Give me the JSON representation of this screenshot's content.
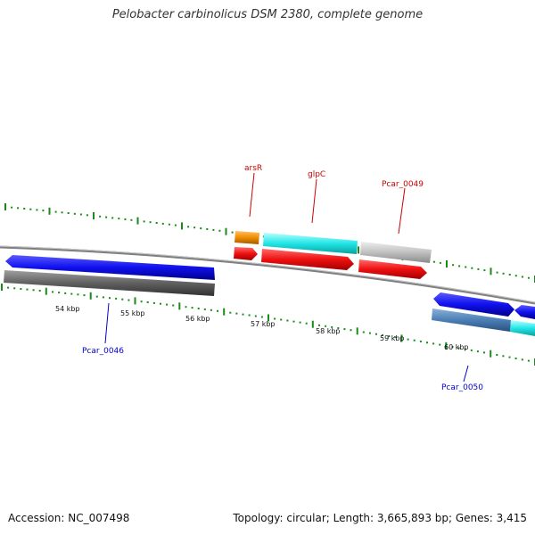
{
  "title": "Pelobacter carbinolicus DSM 2380, complete genome",
  "footer": {
    "accession": "Accession: NC_007498",
    "summary": "Topology: circular; Length: 3,665,893 bp; Genes: 3,415"
  },
  "colors": {
    "forward_cds": "#1010ee",
    "reverse_cds_dark": "#606060",
    "red_gene": "#ee1010",
    "cyan_gene": "#22e6e6",
    "orange_gene": "#f08c00",
    "grey_gene": "#c0c0c0",
    "steel_gene": "#4a7fb5",
    "tick": "#1a8a1a",
    "backbone": "#808080",
    "label_red": "#cc0000",
    "label_blue": "#0000cc"
  },
  "scale_labels": [
    "54 kbp",
    "55 kbp",
    "56 kbp",
    "57 kbp",
    "58 kbp",
    "59 kbp",
    "60 kbp"
  ],
  "gene_labels": [
    {
      "text": "arsR",
      "color": "red"
    },
    {
      "text": "glpC",
      "color": "red"
    },
    {
      "text": "Pcar_0049",
      "color": "red"
    },
    {
      "text": "Pcar_0046",
      "color": "blue"
    },
    {
      "text": "Pcar_0050",
      "color": "blue"
    }
  ]
}
